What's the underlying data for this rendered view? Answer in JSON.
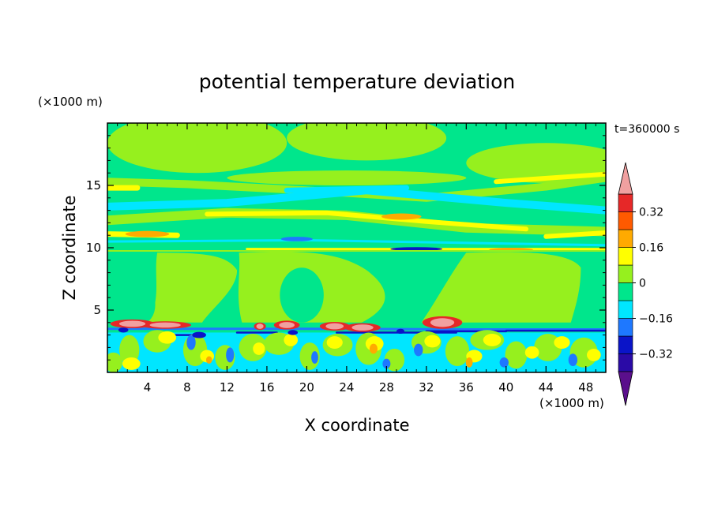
{
  "chart_data": {
    "type": "heatmap",
    "title": "potential temperature deviation",
    "xlabel": "X coordinate",
    "ylabel": "Z coordinate",
    "x_unit": "(×1000 m)",
    "y_unit": "(×1000 m)",
    "time_label": "t=360000 s",
    "xlim": [
      0,
      50
    ],
    "ylim": [
      0,
      20
    ],
    "x_ticks": [
      4,
      8,
      12,
      16,
      20,
      24,
      28,
      32,
      36,
      40,
      44,
      48
    ],
    "y_ticks": [
      5,
      10,
      15
    ],
    "colorbar": {
      "levels": [
        -0.4,
        -0.32,
        -0.24,
        -0.16,
        -0.08,
        0,
        0.08,
        0.16,
        0.24,
        0.32,
        0.4
      ],
      "tick_labels": [
        {
          "value": 0.32,
          "label": "0.32"
        },
        {
          "value": 0.16,
          "label": "0.16"
        },
        {
          "value": 0,
          "label": "0"
        },
        {
          "value": -0.16,
          "label": "−0.16"
        },
        {
          "value": -0.32,
          "label": "−0.32"
        }
      ],
      "colors": [
        "#5a0f8c",
        "#2a0aa6",
        "#0a14c8",
        "#1e78ff",
        "#00e6ff",
        "#00e68c",
        "#96f01e",
        "#ffff00",
        "#ffaa00",
        "#ff5a00",
        "#e62828",
        "#f0a0a0"
      ]
    },
    "colors": {
      "neg_high": "#5a0f8c",
      "neg_032": "#2a0aa6",
      "neg_024": "#0a14c8",
      "neg_016": "#1e78ff",
      "neg_008": "#00e6ff",
      "zero_band": "#00e68c",
      "pos_008": "#96f01e",
      "pos_016": "#ffff00",
      "pos_024": "#ffaa00",
      "pos_032": "#ff5a00",
      "pos_040": "#e62828",
      "pos_high": "#f0a0a0"
    }
  }
}
